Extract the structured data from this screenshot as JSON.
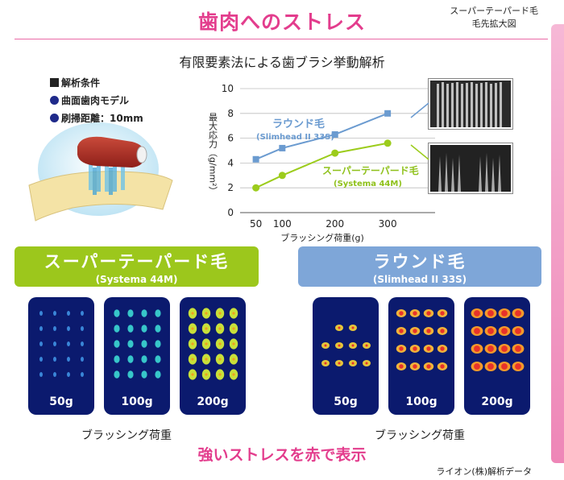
{
  "header": {
    "title": "歯肉へのストレス",
    "corner_line1": "スーパーテーパード毛",
    "corner_line2": "毛先拡大図"
  },
  "subtitle": "有限要素法による歯ブラシ挙動解析",
  "conditions": {
    "heading": "解析条件",
    "model": "曲面歯肉モデル",
    "distance": "刷掃距離：10mm"
  },
  "chart_data": {
    "type": "line",
    "x": [
      50,
      100,
      200,
      300
    ],
    "xlabel": "ブラッシング荷重(g)",
    "ylabel": "最大応力（g/mm²）",
    "ylim": [
      0,
      10
    ],
    "yticks": [
      "0",
      "2",
      "4",
      "6",
      "8",
      "10"
    ],
    "xticks": [
      "50",
      "100",
      "200",
      "300"
    ],
    "series": [
      {
        "name": "ラウンド毛",
        "sub": "(Slimhead II 33S)",
        "values": [
          4.3,
          5.2,
          6.3,
          8.0
        ],
        "color": "#6b9bd0",
        "marker": "square"
      },
      {
        "name": "スーパーテーパード毛",
        "sub": "(Systema 44M)",
        "values": [
          2.0,
          3.0,
          4.8,
          5.6
        ],
        "color": "#9ccc1c",
        "marker": "circle"
      }
    ]
  },
  "left_group": {
    "title": "スーパーテーパード毛",
    "sub": "(Systema 44M)",
    "color": "#9cc71c",
    "panels": [
      "50g",
      "100g",
      "200g"
    ],
    "caption": "ブラッシング荷重"
  },
  "right_group": {
    "title": "ラウンド毛",
    "sub": "(Slimhead II 33S)",
    "color": "#7ea6d8",
    "panels": [
      "50g",
      "100g",
      "200g"
    ],
    "caption": "ブラッシング荷重"
  },
  "footer": {
    "message": "強いストレスを赤で表示",
    "credit": "ライオン(株)解析データ"
  }
}
